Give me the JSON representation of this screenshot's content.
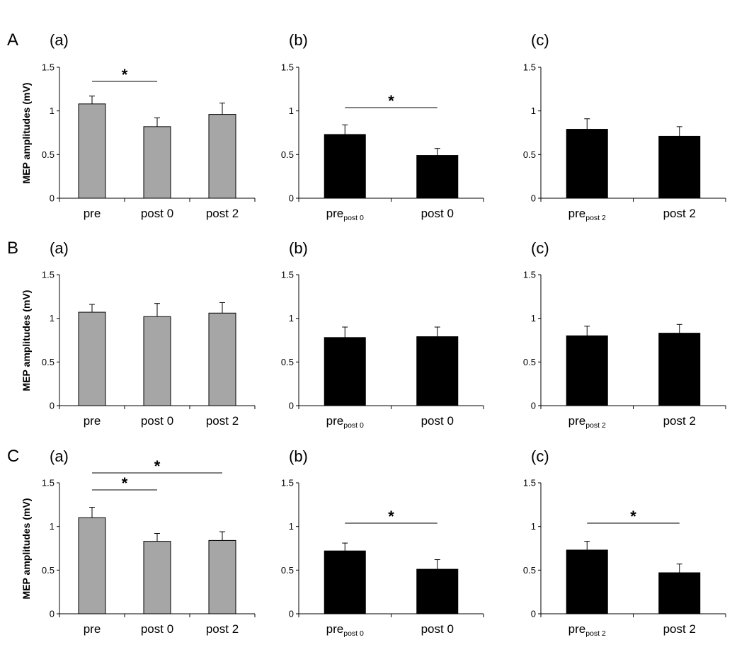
{
  "figure": {
    "ylabel": "MEP amplitudes (mV)",
    "ytick_labels": [
      "0",
      "0.5",
      "1",
      "1.5"
    ],
    "sig_marker": "*",
    "colors": {
      "gray_bar": "#a6a6a6",
      "black_bar": "#000000",
      "axis": "#000000"
    }
  },
  "rows": [
    {
      "label": "A",
      "panels": [
        {
          "label": "(a)"
        },
        {
          "label": "(b)"
        },
        {
          "label": "(c)"
        }
      ]
    },
    {
      "label": "B",
      "panels": [
        {
          "label": "(a)"
        },
        {
          "label": "(b)"
        },
        {
          "label": "(c)"
        }
      ]
    },
    {
      "label": "C",
      "panels": [
        {
          "label": "(a)"
        },
        {
          "label": "(b)"
        },
        {
          "label": "(c)"
        }
      ]
    }
  ],
  "chart_data": [
    {
      "row": "A",
      "panel": "(a)",
      "type": "bar",
      "ylim": [
        0,
        1.5
      ],
      "bar_color": "gray",
      "categories": [
        {
          "main": "pre",
          "sub": ""
        },
        {
          "main": "post 0",
          "sub": ""
        },
        {
          "main": "post 2",
          "sub": ""
        }
      ],
      "values": [
        1.08,
        0.82,
        0.96
      ],
      "errors": [
        0.09,
        0.1,
        0.13
      ],
      "significance": [
        {
          "from": 0,
          "to": 1,
          "marker": "*"
        }
      ]
    },
    {
      "row": "A",
      "panel": "(b)",
      "type": "bar",
      "ylim": [
        0,
        1.5
      ],
      "bar_color": "black",
      "categories": [
        {
          "main": "pre",
          "sub": "post 0"
        },
        {
          "main": "post 0",
          "sub": ""
        }
      ],
      "values": [
        0.73,
        0.49
      ],
      "errors": [
        0.11,
        0.08
      ],
      "significance": [
        {
          "from": 0,
          "to": 1,
          "marker": "*"
        }
      ]
    },
    {
      "row": "A",
      "panel": "(c)",
      "type": "bar",
      "ylim": [
        0,
        1.5
      ],
      "bar_color": "black",
      "categories": [
        {
          "main": "pre",
          "sub": "post 2"
        },
        {
          "main": "post 2",
          "sub": ""
        }
      ],
      "values": [
        0.79,
        0.71
      ],
      "errors": [
        0.12,
        0.11
      ],
      "significance": []
    },
    {
      "row": "B",
      "panel": "(a)",
      "type": "bar",
      "ylim": [
        0,
        1.5
      ],
      "bar_color": "gray",
      "categories": [
        {
          "main": "pre",
          "sub": ""
        },
        {
          "main": "post 0",
          "sub": ""
        },
        {
          "main": "post 2",
          "sub": ""
        }
      ],
      "values": [
        1.07,
        1.02,
        1.06
      ],
      "errors": [
        0.09,
        0.15,
        0.12
      ],
      "significance": []
    },
    {
      "row": "B",
      "panel": "(b)",
      "type": "bar",
      "ylim": [
        0,
        1.5
      ],
      "bar_color": "black",
      "categories": [
        {
          "main": "pre",
          "sub": "post 0"
        },
        {
          "main": "post 0",
          "sub": ""
        }
      ],
      "values": [
        0.78,
        0.79
      ],
      "errors": [
        0.12,
        0.11
      ],
      "significance": []
    },
    {
      "row": "B",
      "panel": "(c)",
      "type": "bar",
      "ylim": [
        0,
        1.5
      ],
      "bar_color": "black",
      "categories": [
        {
          "main": "pre",
          "sub": "post 2"
        },
        {
          "main": "post 2",
          "sub": ""
        }
      ],
      "values": [
        0.8,
        0.83
      ],
      "errors": [
        0.11,
        0.1
      ],
      "significance": []
    },
    {
      "row": "C",
      "panel": "(a)",
      "type": "bar",
      "ylim": [
        0,
        1.5
      ],
      "bar_color": "gray",
      "categories": [
        {
          "main": "pre",
          "sub": ""
        },
        {
          "main": "post 0",
          "sub": ""
        },
        {
          "main": "post 2",
          "sub": ""
        }
      ],
      "values": [
        1.1,
        0.83,
        0.84
      ],
      "errors": [
        0.12,
        0.09,
        0.1
      ],
      "significance": [
        {
          "from": 0,
          "to": 1,
          "marker": "*"
        },
        {
          "from": 0,
          "to": 2,
          "marker": "*"
        }
      ]
    },
    {
      "row": "C",
      "panel": "(b)",
      "type": "bar",
      "ylim": [
        0,
        1.5
      ],
      "bar_color": "black",
      "categories": [
        {
          "main": "pre",
          "sub": "post 0"
        },
        {
          "main": "post 0",
          "sub": ""
        }
      ],
      "values": [
        0.72,
        0.51
      ],
      "errors": [
        0.09,
        0.11
      ],
      "significance": [
        {
          "from": 0,
          "to": 1,
          "marker": "*"
        }
      ]
    },
    {
      "row": "C",
      "panel": "(c)",
      "type": "bar",
      "ylim": [
        0,
        1.5
      ],
      "bar_color": "black",
      "categories": [
        {
          "main": "pre",
          "sub": "post 2"
        },
        {
          "main": "post 2",
          "sub": ""
        }
      ],
      "values": [
        0.73,
        0.47
      ],
      "errors": [
        0.1,
        0.1
      ],
      "significance": [
        {
          "from": 0,
          "to": 1,
          "marker": "*"
        }
      ]
    }
  ]
}
